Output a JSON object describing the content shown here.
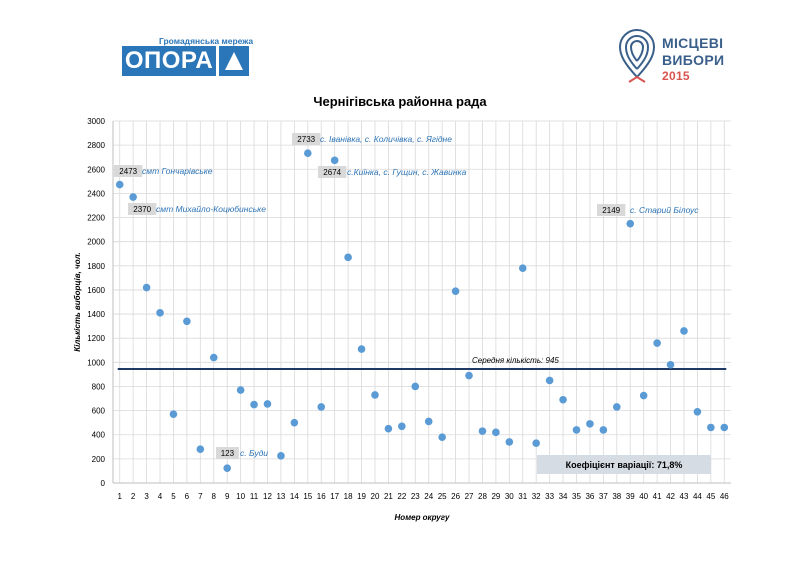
{
  "header": {
    "left_logo_caption": "Громадянська мережа",
    "left_logo_name": "ОПОРА",
    "right_logo_line1": "МІСЦЕВІ",
    "right_logo_line2": "ВИБОРИ",
    "right_logo_year": "2015"
  },
  "colors": {
    "accent": "#2b76b9",
    "marker": "#5b9bd5",
    "mean_line": "#1f3864",
    "label_text": "#2e75b6"
  },
  "chart_data": {
    "type": "scatter",
    "title": "Чернігівська районна рада",
    "xlabel": "Номер округу",
    "ylabel": "Кількість виборців, чол.",
    "xlim": [
      0.5,
      46.5
    ],
    "ylim": [
      0,
      3000
    ],
    "grid": true,
    "x_ticks": [
      1,
      2,
      3,
      4,
      5,
      6,
      7,
      8,
      9,
      10,
      11,
      12,
      13,
      14,
      15,
      16,
      17,
      18,
      19,
      20,
      21,
      22,
      23,
      24,
      25,
      26,
      27,
      28,
      29,
      30,
      31,
      32,
      33,
      34,
      35,
      36,
      37,
      38,
      39,
      40,
      41,
      42,
      43,
      44,
      45,
      46
    ],
    "y_ticks": [
      0,
      200,
      400,
      600,
      800,
      1000,
      1200,
      1400,
      1600,
      1800,
      2000,
      2200,
      2400,
      2600,
      2800,
      3000
    ],
    "x": [
      1,
      2,
      3,
      4,
      5,
      6,
      7,
      8,
      9,
      10,
      11,
      12,
      13,
      14,
      15,
      16,
      17,
      18,
      19,
      20,
      21,
      22,
      23,
      24,
      25,
      26,
      27,
      28,
      29,
      30,
      31,
      32,
      33,
      34,
      35,
      36,
      37,
      38,
      39,
      40,
      41,
      42,
      43,
      44,
      45,
      46
    ],
    "y": [
      2473,
      2370,
      1620,
      1410,
      570,
      1340,
      280,
      1040,
      123,
      770,
      650,
      655,
      225,
      500,
      2733,
      630,
      2674,
      1870,
      1110,
      730,
      450,
      470,
      800,
      510,
      380,
      1590,
      890,
      430,
      420,
      340,
      1780,
      330,
      850,
      690,
      440,
      490,
      440,
      630,
      2149,
      725,
      1160,
      980,
      1260,
      590,
      460,
      460
    ],
    "mean": {
      "value": 945,
      "label": "Середня кількість: 945"
    },
    "variation": {
      "label": "Коефіцієнт варіації:  71,8%"
    },
    "annotations": [
      {
        "x": 1,
        "value_label": "2473",
        "text": "смт Гончарівське"
      },
      {
        "x": 2,
        "value_label": "2370",
        "text": "смт Михайло-Коцюбинське"
      },
      {
        "x": 9,
        "value_label": "123",
        "text": "с. Буди"
      },
      {
        "x": 15,
        "value_label": "2733",
        "text": "с. Іванівка, с. Количівка, с. Ягідне"
      },
      {
        "x": 17,
        "value_label": "2674",
        "text": "с.Киїнка, с. Гущин, с. Жавинка"
      },
      {
        "x": 39,
        "value_label": "2149",
        "text": "с. Старий Білоус"
      }
    ]
  }
}
